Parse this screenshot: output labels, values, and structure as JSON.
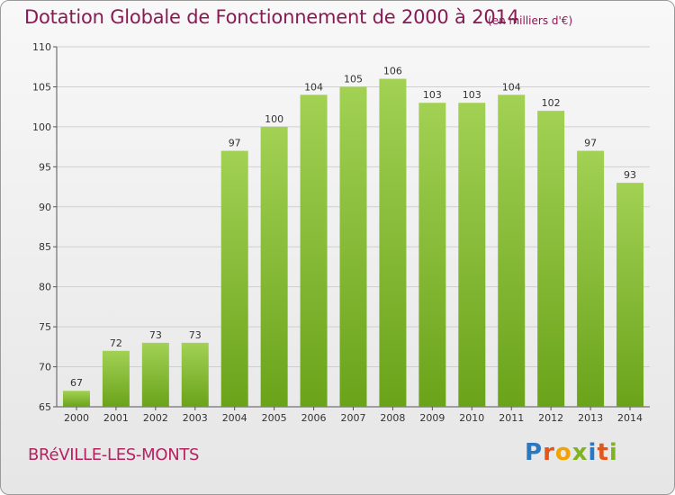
{
  "header": {
    "title": "Dotation Globale de Fonctionnement de 2000 à 2014",
    "subtitle": "(en milliers d'€)"
  },
  "footer": {
    "city": "BRéVILLE-LES-MONTS",
    "logo_letters": [
      "P",
      "r",
      "o",
      "x",
      "i",
      "t",
      "i"
    ],
    "logo_colors": [
      "#2b78c2",
      "#e2561b",
      "#f2a300",
      "#7fb321",
      "#2b78c2",
      "#e2561b",
      "#7fb321"
    ]
  },
  "chart_data": {
    "type": "bar",
    "categories": [
      "2000",
      "2001",
      "2002",
      "2003",
      "2004",
      "2005",
      "2006",
      "2007",
      "2008",
      "2009",
      "2010",
      "2011",
      "2012",
      "2013",
      "2014"
    ],
    "values": [
      67,
      72,
      73,
      73,
      97,
      100,
      104,
      105,
      106,
      103,
      103,
      104,
      102,
      97,
      93
    ],
    "ylim": [
      65,
      110
    ],
    "yticks": [
      65,
      70,
      75,
      80,
      85,
      90,
      95,
      100,
      105,
      110
    ],
    "grid": true,
    "bar_color_top": "#a2d154",
    "bar_color_bottom": "#6aa31a",
    "title": "Dotation Globale de Fonctionnement de 2000 à 2014",
    "xlabel": "",
    "ylabel": ""
  }
}
